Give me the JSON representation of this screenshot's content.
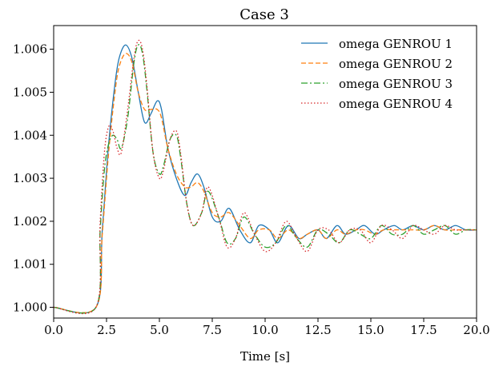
{
  "chart_data": {
    "type": "line",
    "title": "Case 3",
    "xlabel": "Time [s]",
    "ylabel": "",
    "xlim": [
      0,
      20
    ],
    "ylim": [
      0.99975,
      1.00655
    ],
    "xticks": [
      0,
      2.5,
      5,
      7.5,
      10,
      12.5,
      15,
      17.5,
      20
    ],
    "xtick_labels": [
      "0.0",
      "2.5",
      "5.0",
      "7.5",
      "10.0",
      "12.5",
      "15.0",
      "17.5",
      "20.0"
    ],
    "yticks": [
      1.0,
      1.001,
      1.002,
      1.003,
      1.004,
      1.005,
      1.006
    ],
    "ytick_labels": [
      "1.000",
      "1.001",
      "1.002",
      "1.003",
      "1.004",
      "1.005",
      "1.006"
    ],
    "grid": false,
    "legend_position": "top-right",
    "series": [
      {
        "name": "omega GENROU 1",
        "color": "#1f77b4",
        "dash": "solid",
        "x": [
          0,
          2.0,
          2.3,
          2.6,
          2.9,
          3.1,
          3.4,
          3.7,
          4.0,
          4.3,
          4.6,
          4.9,
          5.1,
          5.4,
          5.8,
          6.2,
          6.5,
          6.8,
          7.1,
          7.5,
          7.9,
          8.3,
          8.8,
          9.3,
          9.7,
          10.2,
          10.6,
          11.1,
          11.6,
          12.0,
          12.5,
          12.9,
          13.4,
          13.8,
          14.3,
          14.7,
          15.2,
          15.6,
          16.1,
          16.5,
          17.0,
          17.5,
          18.0,
          18.5,
          19.0,
          19.5,
          20.0
        ],
        "values": [
          1.0,
          1.0,
          1.0018,
          1.0038,
          1.0052,
          1.0058,
          1.0061,
          1.0058,
          1.005,
          1.0043,
          1.0045,
          1.0048,
          1.0046,
          1.0037,
          1.003,
          1.0026,
          1.0029,
          1.0031,
          1.0028,
          1.0021,
          1.002,
          1.0023,
          1.0018,
          1.0015,
          1.0019,
          1.0018,
          1.0015,
          1.0019,
          1.0016,
          1.0017,
          1.0018,
          1.0016,
          1.0019,
          1.0017,
          1.0018,
          1.0019,
          1.0017,
          1.0018,
          1.0019,
          1.0018,
          1.0019,
          1.0018,
          1.0019,
          1.0018,
          1.0019,
          1.0018,
          1.0018
        ]
      },
      {
        "name": "omega GENROU 2",
        "color": "#ff7f0e",
        "dash": "6,3",
        "x": [
          0,
          2.0,
          2.3,
          2.6,
          2.9,
          3.1,
          3.4,
          3.7,
          4.0,
          4.3,
          4.6,
          4.9,
          5.1,
          5.4,
          5.8,
          6.2,
          6.5,
          6.8,
          7.1,
          7.5,
          7.9,
          8.3,
          8.8,
          9.3,
          9.7,
          10.2,
          10.6,
          11.1,
          11.6,
          12.0,
          12.5,
          12.9,
          13.4,
          13.8,
          14.3,
          14.7,
          15.2,
          15.6,
          16.1,
          16.5,
          17.0,
          17.5,
          18.0,
          18.5,
          19.0,
          19.5,
          20.0
        ],
        "values": [
          1.0,
          1.0,
          1.0017,
          1.0036,
          1.005,
          1.0056,
          1.0059,
          1.0057,
          1.005,
          1.0046,
          1.0046,
          1.0046,
          1.0044,
          1.0037,
          1.0031,
          1.0028,
          1.0028,
          1.0029,
          1.0027,
          1.0022,
          1.0021,
          1.0022,
          1.0019,
          1.0016,
          1.0018,
          1.0018,
          1.0016,
          1.0018,
          1.0016,
          1.0017,
          1.0018,
          1.0016,
          1.0018,
          1.0017,
          1.0018,
          1.0018,
          1.0017,
          1.0018,
          1.0018,
          1.0018,
          1.0018,
          1.0018,
          1.0019,
          1.0018,
          1.0018,
          1.0018,
          1.0018
        ]
      },
      {
        "name": "omega GENROU 3",
        "color": "#2ca02c",
        "dash": "8,3,2,3",
        "x": [
          0,
          2.0,
          2.2,
          2.4,
          2.6,
          2.8,
          3.0,
          3.2,
          3.5,
          3.8,
          4.0,
          4.2,
          4.4,
          4.7,
          5.0,
          5.2,
          5.5,
          5.8,
          6.0,
          6.3,
          6.6,
          7.0,
          7.3,
          7.8,
          8.2,
          8.6,
          9.0,
          9.5,
          10.0,
          10.5,
          11.0,
          11.5,
          12.0,
          12.5,
          13.0,
          13.5,
          14.0,
          14.5,
          15.0,
          15.5,
          16.0,
          16.5,
          17.0,
          17.5,
          18.0,
          18.5,
          19.0,
          19.5,
          20.0
        ],
        "values": [
          1.0,
          1.0,
          1.0018,
          1.0032,
          1.0038,
          1.004,
          1.0039,
          1.0037,
          1.0044,
          1.0057,
          1.0061,
          1.0059,
          1.0051,
          1.0036,
          1.0031,
          1.0033,
          1.0039,
          1.004,
          1.0035,
          1.0024,
          1.0019,
          1.0022,
          1.0027,
          1.0021,
          1.0015,
          1.0016,
          1.0021,
          1.0017,
          1.0014,
          1.0015,
          1.0019,
          1.0016,
          1.0014,
          1.0018,
          1.0017,
          1.0015,
          1.0018,
          1.0017,
          1.0016,
          1.0019,
          1.0017,
          1.0017,
          1.0019,
          1.0017,
          1.0018,
          1.0019,
          1.0017,
          1.0018,
          1.0018
        ]
      },
      {
        "name": "omega GENROU 4",
        "color": "#d62728",
        "dash": "1.5,2.5",
        "x": [
          0,
          2.0,
          2.2,
          2.4,
          2.6,
          2.8,
          3.0,
          3.2,
          3.5,
          3.8,
          4.0,
          4.2,
          4.4,
          4.7,
          5.0,
          5.2,
          5.5,
          5.8,
          6.0,
          6.3,
          6.6,
          7.0,
          7.3,
          7.8,
          8.2,
          8.6,
          9.0,
          9.5,
          10.0,
          10.5,
          11.0,
          11.5,
          12.0,
          12.5,
          13.0,
          13.5,
          14.0,
          14.5,
          15.0,
          15.5,
          16.0,
          16.5,
          17.0,
          17.5,
          18.0,
          18.5,
          19.0,
          19.5,
          20.0
        ],
        "values": [
          1.0,
          1.0,
          1.002,
          1.0036,
          1.0042,
          1.0041,
          1.0037,
          1.0036,
          1.0046,
          1.0058,
          1.0062,
          1.006,
          1.0052,
          1.0036,
          1.003,
          1.0032,
          1.0039,
          1.0041,
          1.0036,
          1.0024,
          1.0019,
          1.0022,
          1.0028,
          1.0021,
          1.0014,
          1.0016,
          1.0022,
          1.0017,
          1.0013,
          1.0015,
          1.002,
          1.0016,
          1.0013,
          1.0018,
          1.0018,
          1.0015,
          1.0018,
          1.0018,
          1.0015,
          1.0019,
          1.0018,
          1.0016,
          1.0019,
          1.0018,
          1.0017,
          1.0019,
          1.0018,
          1.0018,
          1.0018
        ]
      }
    ]
  }
}
